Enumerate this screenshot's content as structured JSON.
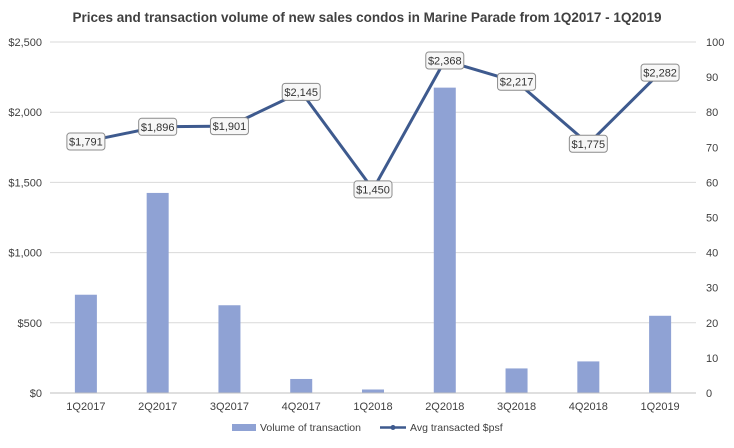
{
  "chart_data": {
    "type": "bar",
    "title": "Prices and transaction volume of new sales condos in Marine Parade from 1Q2017 - 1Q2019",
    "categories": [
      "1Q2017",
      "2Q2017",
      "3Q2017",
      "4Q2017",
      "1Q2018",
      "2Q2018",
      "3Q2018",
      "4Q2018",
      "1Q2019"
    ],
    "series": [
      {
        "name": "Volume of transaction",
        "type": "bar",
        "axis": "right",
        "color": "#8FA2D4",
        "values": [
          28,
          57,
          25,
          4,
          1,
          87,
          7,
          9,
          22
        ]
      },
      {
        "name": "Avg transacted $psf",
        "type": "line",
        "axis": "left",
        "color": "#3E5A8E",
        "values": [
          1791,
          1896,
          1901,
          2145,
          1450,
          2368,
          2217,
          1775,
          2282
        ],
        "data_labels": [
          "$1,791",
          "$1,896",
          "$1,901",
          "$2,145",
          "$1,450",
          "$2,368",
          "$2,217",
          "$1,775",
          "$2,282"
        ]
      }
    ],
    "y_left": {
      "ylim": [
        0,
        2500
      ],
      "ticks": [
        0,
        500,
        1000,
        1500,
        2000,
        2500
      ],
      "tick_labels": [
        "$0",
        "$500",
        "$1,000",
        "$1,500",
        "$2,000",
        "$2,500"
      ]
    },
    "y_right": {
      "ylim": [
        0,
        100
      ],
      "ticks": [
        0,
        10,
        20,
        30,
        40,
        50,
        60,
        70,
        80,
        90,
        100
      ],
      "tick_labels": [
        "0",
        "10",
        "20",
        "30",
        "40",
        "50",
        "60",
        "70",
        "80",
        "90",
        "100"
      ]
    },
    "grid": true,
    "legend": "bottom"
  }
}
